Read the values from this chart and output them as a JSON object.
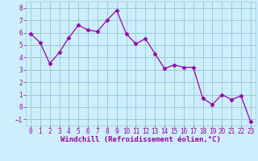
{
  "x": [
    0,
    1,
    2,
    3,
    4,
    5,
    6,
    7,
    8,
    9,
    10,
    11,
    12,
    13,
    14,
    15,
    16,
    17,
    18,
    19,
    20,
    21,
    22,
    23
  ],
  "y": [
    5.9,
    5.2,
    3.5,
    4.4,
    5.6,
    6.6,
    6.2,
    6.1,
    7.0,
    7.8,
    5.9,
    5.1,
    5.5,
    4.3,
    3.1,
    3.4,
    3.2,
    3.2,
    0.7,
    0.2,
    1.0,
    0.6,
    0.9,
    -1.2
  ],
  "line_color": "#9900aa",
  "marker": "D",
  "marker_size": 2.5,
  "bg_color": "#cceeff",
  "grid_color": "#99cccc",
  "xlim": [
    -0.5,
    23.5
  ],
  "ylim": [
    -1.5,
    8.5
  ],
  "yticks": [
    -1,
    0,
    1,
    2,
    3,
    4,
    5,
    6,
    7,
    8
  ],
  "xticks": [
    0,
    1,
    2,
    3,
    4,
    5,
    6,
    7,
    8,
    9,
    10,
    11,
    12,
    13,
    14,
    15,
    16,
    17,
    18,
    19,
    20,
    21,
    22,
    23
  ],
  "xlabel": "Windchill (Refroidissement éolien,°C)",
  "tick_color": "#990099",
  "label_color": "#990099",
  "tick_fontsize": 5.5,
  "label_fontsize": 6.5
}
